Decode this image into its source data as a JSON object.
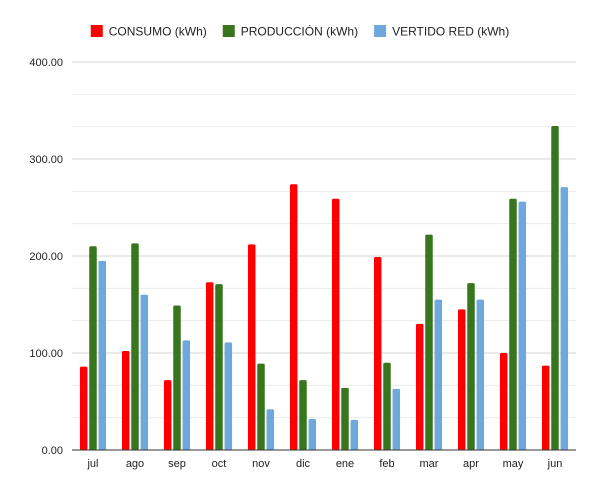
{
  "chart_data": {
    "type": "bar",
    "categories": [
      "jul",
      "ago",
      "sep",
      "oct",
      "nov",
      "dic",
      "ene",
      "feb",
      "mar",
      "apr",
      "may",
      "jun"
    ],
    "series": [
      {
        "name": "CONSUMO (kWh)",
        "color": "#ff0000",
        "values": [
          86,
          102,
          72,
          173,
          212,
          274,
          259,
          199,
          130,
          145,
          100,
          87
        ]
      },
      {
        "name": "PRODUCCIÓN (kWh)",
        "color": "#38761d",
        "values": [
          210,
          213,
          149,
          171,
          89,
          72,
          64,
          90,
          222,
          172,
          259,
          334
        ]
      },
      {
        "name": "VERTIDO RED (kWh)",
        "color": "#6fa8dc",
        "values": [
          195,
          160,
          113,
          111,
          42,
          32,
          31,
          63,
          155,
          155,
          256,
          271
        ]
      }
    ],
    "yticks": [
      "0.00",
      "100.00",
      "200.00",
      "300.00",
      "400.00"
    ],
    "ylim": [
      0,
      400
    ],
    "grid": true,
    "legend": "top",
    "title": "",
    "xlabel": "",
    "ylabel": ""
  }
}
